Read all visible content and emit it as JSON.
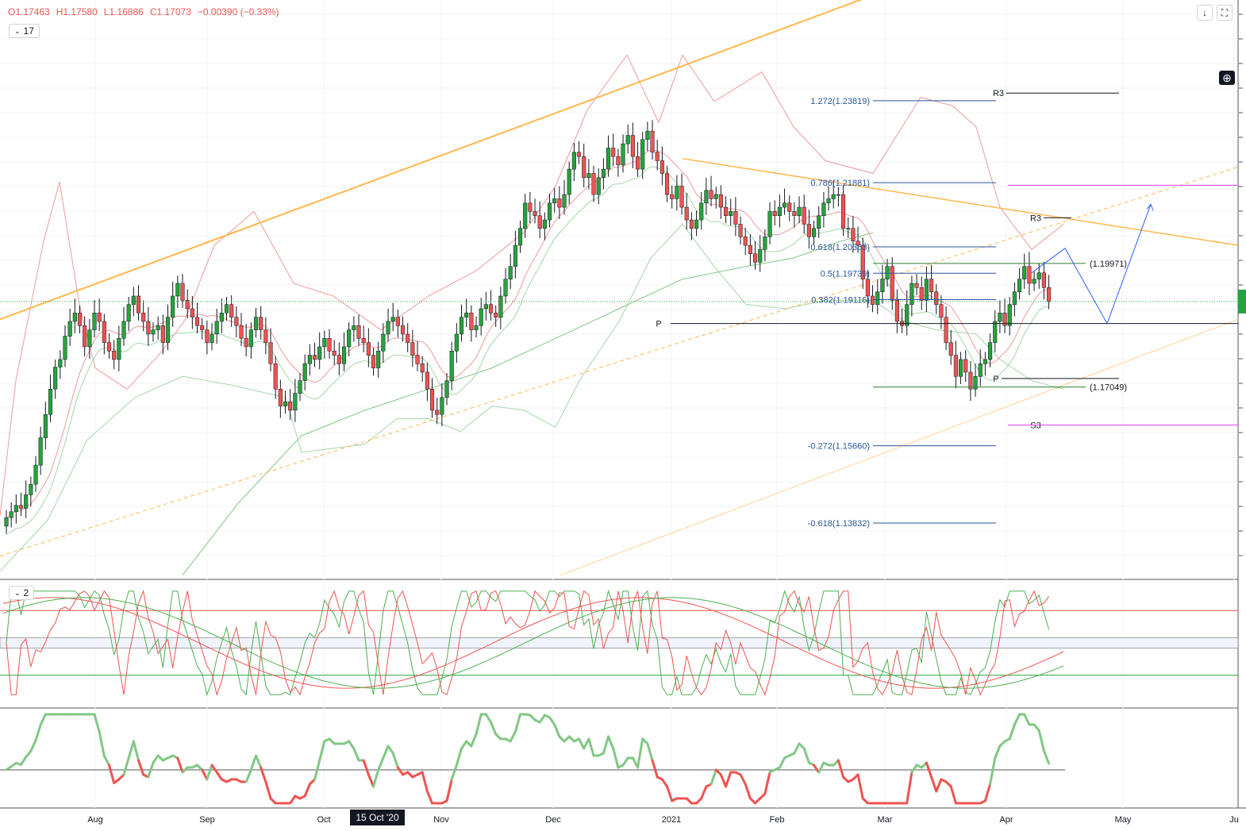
{
  "ohlc": {
    "open": "O1.17463",
    "high": "H1.17580",
    "low": "L1.16886",
    "close": "C1.17073",
    "change": "−0.00390 (−0.33%)",
    "color": "#ef5350"
  },
  "main_pane_button": "17",
  "osc_pane_button": "2",
  "toolbar_icons": [
    "arrow-down-icon",
    "fullscreen-icon"
  ],
  "plus_icon": "plus-circle-icon",
  "crosshair_date": "15 Oct '20",
  "chart_data": {
    "type": "candlestick",
    "instrument_shown": "EUR/USD daily (values from OHLC header)",
    "x_ticks": [
      "Aug",
      "Sep",
      "Oct",
      "Nov",
      "Dec",
      "2021",
      "Feb",
      "Mar",
      "Apr",
      "May",
      "Ju"
    ],
    "ylim": [
      1.125,
      1.262
    ],
    "colors": {
      "up": "#26a33a",
      "down": "#ef5350",
      "bollinger_upper": "#ef9a9a",
      "bollinger_lower": "#a5d6a7",
      "trendline": "#ffb74d",
      "fib": "#2a5599"
    },
    "closes": [
      1.1396,
      1.141,
      1.1425,
      1.1418,
      1.145,
      1.1475,
      1.152,
      1.1585,
      1.164,
      1.17,
      1.1752,
      1.177,
      1.1825,
      1.186,
      1.188,
      1.185,
      1.18,
      1.184,
      1.188,
      1.186,
      1.181,
      1.179,
      1.177,
      1.182,
      1.186,
      1.19,
      1.192,
      1.188,
      1.186,
      1.183,
      1.184,
      1.185,
      1.181,
      1.187,
      1.192,
      1.195,
      1.191,
      1.189,
      1.187,
      1.185,
      1.184,
      1.181,
      1.183,
      1.186,
      1.188,
      1.19,
      1.187,
      1.185,
      1.182,
      1.18,
      1.184,
      1.187,
      1.184,
      1.181,
      1.176,
      1.17,
      1.166,
      1.167,
      1.165,
      1.169,
      1.172,
      1.176,
      1.178,
      1.177,
      1.18,
      1.182,
      1.179,
      1.178,
      1.176,
      1.18,
      1.184,
      1.185,
      1.182,
      1.181,
      1.178,
      1.175,
      1.179,
      1.183,
      1.186,
      1.187,
      1.185,
      1.183,
      1.181,
      1.178,
      1.176,
      1.174,
      1.17,
      1.165,
      1.164,
      1.168,
      1.172,
      1.179,
      1.183,
      1.187,
      1.188,
      1.184,
      1.185,
      1.189,
      1.19,
      1.188,
      1.187,
      1.192,
      1.196,
      1.199,
      1.204,
      1.208,
      1.214,
      1.212,
      1.211,
      1.208,
      1.21,
      1.214,
      1.215,
      1.213,
      1.216,
      1.222,
      1.226,
      1.225,
      1.22,
      1.221,
      1.216,
      1.22,
      1.222,
      1.227,
      1.225,
      1.223,
      1.228,
      1.23,
      1.225,
      1.222,
      1.229,
      1.231,
      1.226,
      1.224,
      1.221,
      1.216,
      1.215,
      1.218,
      1.213,
      1.21,
      1.208,
      1.21,
      1.214,
      1.217,
      1.215,
      1.216,
      1.213,
      1.211,
      1.212,
      1.209,
      1.206,
      1.204,
      1.202,
      1.2,
      1.203,
      1.206,
      1.212,
      1.211,
      1.213,
      1.214,
      1.212,
      1.211,
      1.213,
      1.209,
      1.206,
      1.208,
      1.211,
      1.214,
      1.215,
      1.216,
      1.216,
      1.208,
      1.208,
      1.205,
      1.204,
      1.196,
      1.192,
      1.19,
      1.193,
      1.196,
      1.199,
      1.191,
      1.186,
      1.185,
      1.19,
      1.195,
      1.194,
      1.191,
      1.196,
      1.193,
      1.19,
      1.187,
      1.181,
      1.178,
      1.173,
      1.177,
      1.174,
      1.17,
      1.173,
      1.176,
      1.177,
      1.181,
      1.186,
      1.188,
      1.185,
      1.19,
      1.193,
      1.196,
      1.199,
      1.195,
      1.196,
      1.1975,
      1.194,
      1.1907
    ],
    "bollinger_upper": [
      [
        0,
        1.14
      ],
      [
        20,
        1.172
      ],
      [
        55,
        1.205
      ],
      [
        75,
        1.219
      ],
      [
        100,
        1.19
      ],
      [
        120,
        1.175
      ],
      [
        160,
        1.17
      ],
      [
        200,
        1.178
      ],
      [
        232,
        1.186
      ],
      [
        270,
        1.204
      ],
      [
        320,
        1.212
      ],
      [
        370,
        1.195
      ],
      [
        420,
        1.192
      ],
      [
        480,
        1.184
      ],
      [
        540,
        1.192
      ],
      [
        600,
        1.198
      ],
      [
        660,
        1.207
      ],
      [
        700,
        1.218
      ],
      [
        740,
        1.236
      ],
      [
        790,
        1.249
      ],
      [
        830,
        1.233
      ],
      [
        860,
        1.249
      ],
      [
        900,
        1.238
      ],
      [
        960,
        1.245
      ],
      [
        1000,
        1.232
      ],
      [
        1040,
        1.224
      ],
      [
        1100,
        1.221
      ],
      [
        1160,
        1.239
      ],
      [
        1200,
        1.237
      ],
      [
        1230,
        1.232
      ],
      [
        1260,
        1.213
      ],
      [
        1300,
        1.203
      ],
      [
        1340,
        1.209
      ]
    ],
    "bollinger_lower": [
      [
        0,
        1.127
      ],
      [
        60,
        1.139
      ],
      [
        110,
        1.158
      ],
      [
        170,
        1.168
      ],
      [
        230,
        1.173
      ],
      [
        290,
        1.171
      ],
      [
        360,
        1.168
      ],
      [
        380,
        1.155
      ],
      [
        420,
        1.156
      ],
      [
        460,
        1.157
      ],
      [
        500,
        1.163
      ],
      [
        540,
        1.163
      ],
      [
        580,
        1.16
      ],
      [
        620,
        1.166
      ],
      [
        660,
        1.165
      ],
      [
        700,
        1.161
      ],
      [
        730,
        1.172
      ],
      [
        780,
        1.186
      ],
      [
        820,
        1.201
      ],
      [
        860,
        1.209
      ],
      [
        900,
        1.199
      ],
      [
        940,
        1.19
      ],
      [
        990,
        1.189
      ],
      [
        1040,
        1.191
      ],
      [
        1100,
        1.191
      ],
      [
        1140,
        1.186
      ],
      [
        1180,
        1.184
      ],
      [
        1230,
        1.183
      ],
      [
        1260,
        1.177
      ],
      [
        1300,
        1.172
      ],
      [
        1340,
        1.17
      ]
    ],
    "sma_200": [
      [
        230,
        1.126
      ],
      [
        300,
        1.143
      ],
      [
        380,
        1.159
      ],
      [
        460,
        1.165
      ],
      [
        540,
        1.17
      ],
      [
        620,
        1.175
      ],
      [
        700,
        1.182
      ],
      [
        780,
        1.189
      ],
      [
        860,
        1.196
      ],
      [
        940,
        1.199
      ],
      [
        1000,
        1.201
      ],
      [
        1060,
        1.205
      ],
      [
        1100,
        1.207
      ]
    ],
    "trendlines": [
      {
        "from": [
          0,
          1.1865
        ],
        "to": [
          1098,
          1.263
        ],
        "style": "solid"
      },
      {
        "from": [
          860,
          1.2245
        ],
        "to": [
          1560,
          1.204
        ],
        "style": "solid"
      },
      {
        "from": [
          0,
          1.1305
        ],
        "to": [
          1560,
          1.2225
        ],
        "style": "dashed"
      },
      {
        "from": [
          706,
          1.126
        ],
        "to": [
          1560,
          1.1865
        ],
        "style": "solid-thin"
      }
    ],
    "fibonacci": [
      {
        "label": "1.272(1.23819)",
        "value": 1.23819
      },
      {
        "label": "0.786(1.21881)",
        "value": 1.21881
      },
      {
        "label": "0.618(1.20363)",
        "value": 1.20363
      },
      {
        "label": "0.5(1.19739)",
        "value": 1.19739
      },
      {
        "label": "0.382(1.19116)",
        "value": 1.19116
      },
      {
        "label": "-0.272(1.15660)",
        "value": 1.1566
      },
      {
        "label": "-0.618(1.13832)",
        "value": 1.13832
      }
    ],
    "pivots": [
      {
        "label": "R3",
        "value": 1.24
      },
      {
        "label": "R3",
        "value": 1.2105
      },
      {
        "label": "P",
        "value": 1.1855
      },
      {
        "label": "S3",
        "value": 1.1615
      },
      {
        "label": "P",
        "value": 1.1725
      }
    ],
    "levels": [
      {
        "label": "(1.19971)",
        "value": 1.19971
      },
      {
        "label": "(1.17049)",
        "value": 1.17049
      }
    ],
    "magenta_levels": [
      1.2182,
      1.1615
    ],
    "projection_path": [
      [
        1300,
        1.1975
      ],
      [
        1342,
        1.2033
      ],
      [
        1395,
        1.1855
      ],
      [
        1450,
        1.2137
      ]
    ]
  }
}
